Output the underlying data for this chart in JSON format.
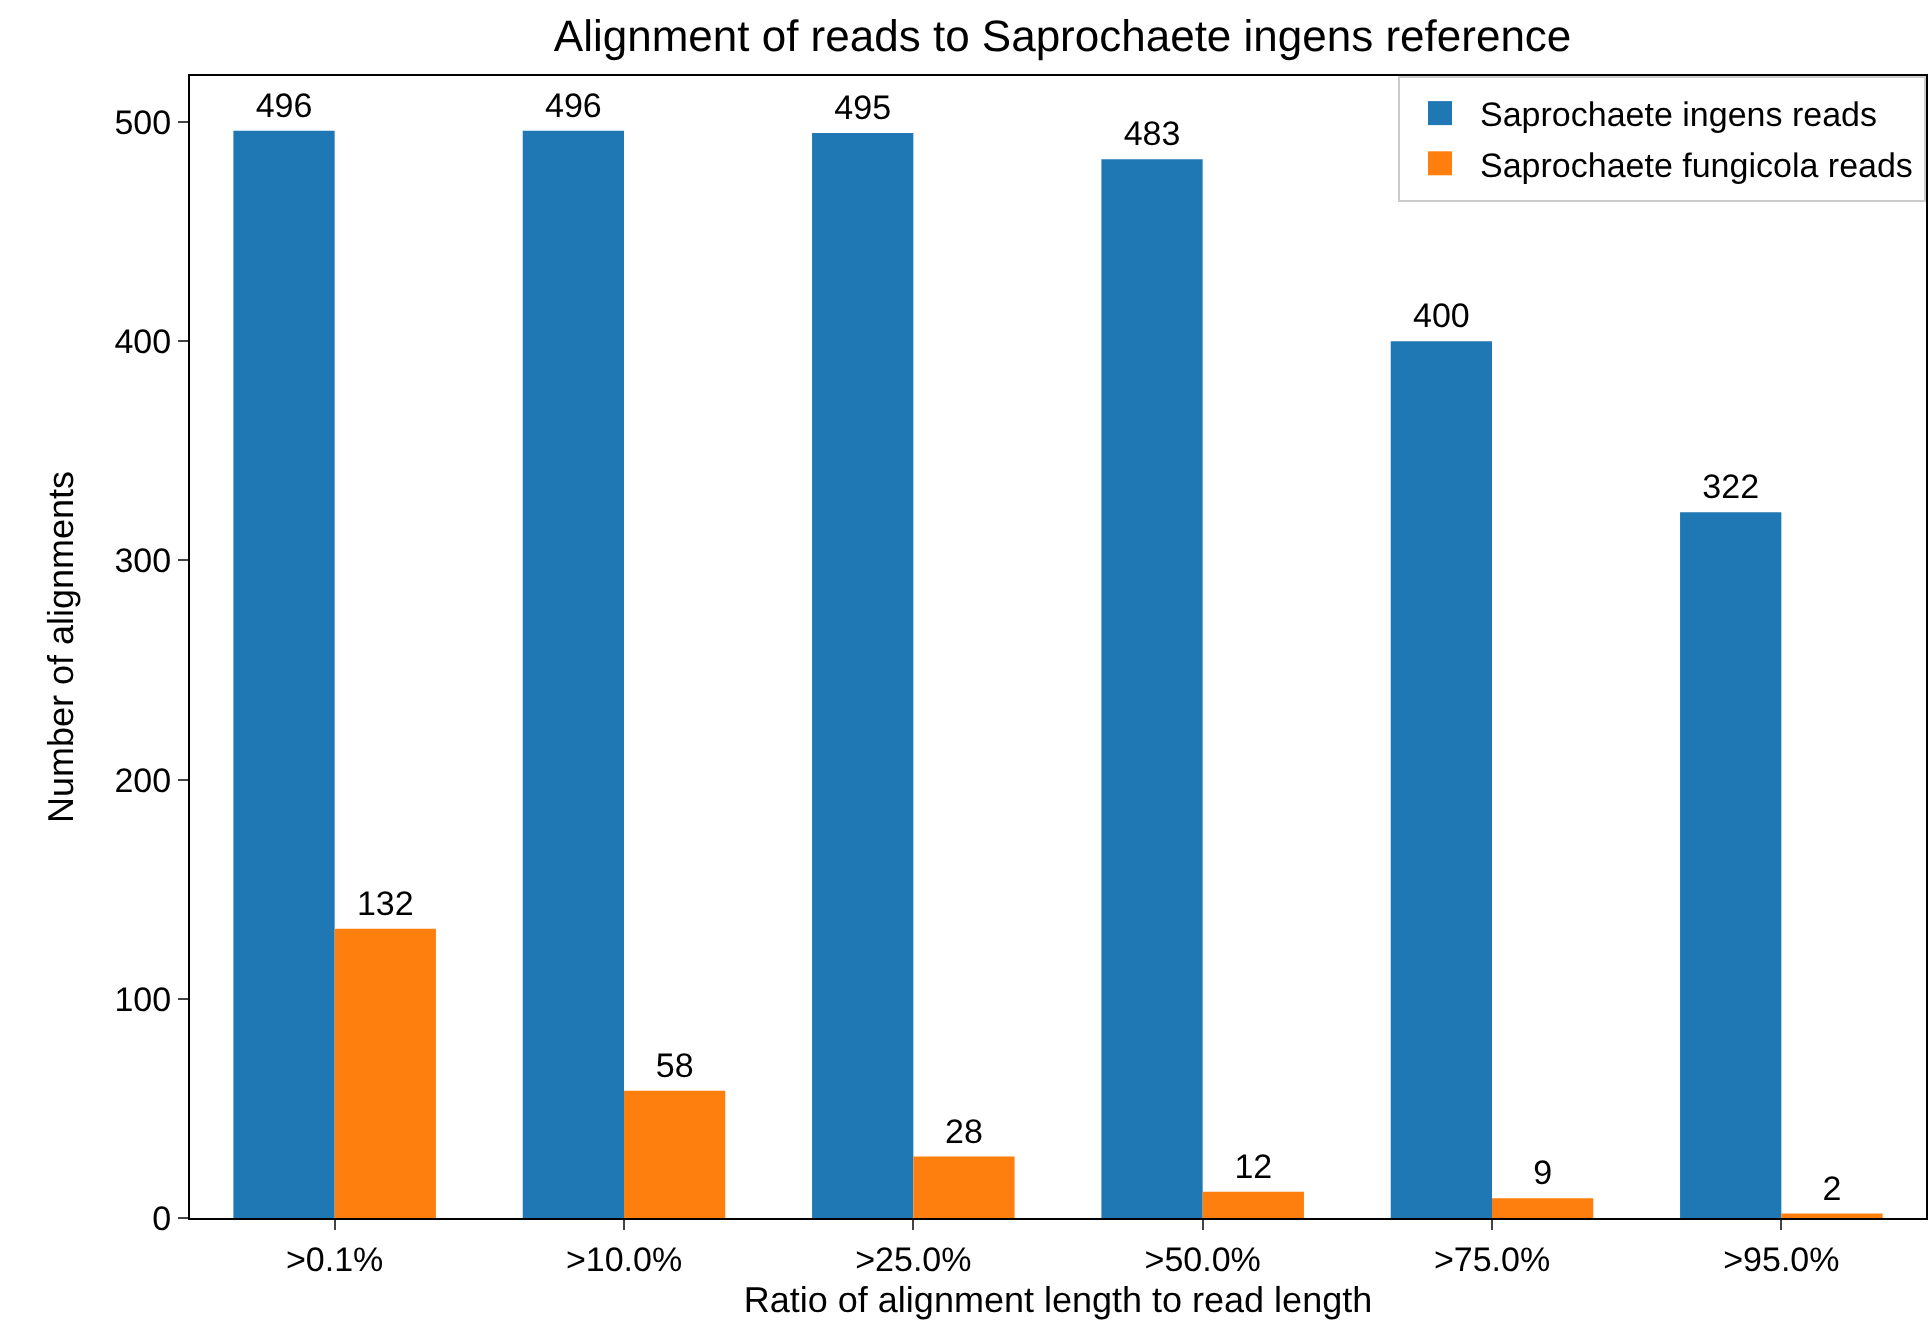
{
  "chart_data": {
    "type": "bar",
    "title": "Alignment of reads to Saprochaete ingens reference",
    "xlabel": "Ratio of alignment length to read length",
    "ylabel": "Number of alignments",
    "categories": [
      ">0.1%",
      ">10.0%",
      ">25.0%",
      ">50.0%",
      ">75.0%",
      ">95.0%"
    ],
    "series": [
      {
        "name": "Saprochaete ingens reads",
        "color": "#1f77b4",
        "values": [
          496,
          496,
          495,
          483,
          400,
          322
        ]
      },
      {
        "name": "Saprochaete fungicola reads",
        "color": "#ff7f0e",
        "values": [
          132,
          58,
          28,
          12,
          9,
          2
        ]
      }
    ],
    "ylim": [
      0,
      521
    ],
    "yticks": [
      0,
      100,
      200,
      300,
      400,
      500
    ],
    "legend": "top right",
    "data_labels": true
  }
}
